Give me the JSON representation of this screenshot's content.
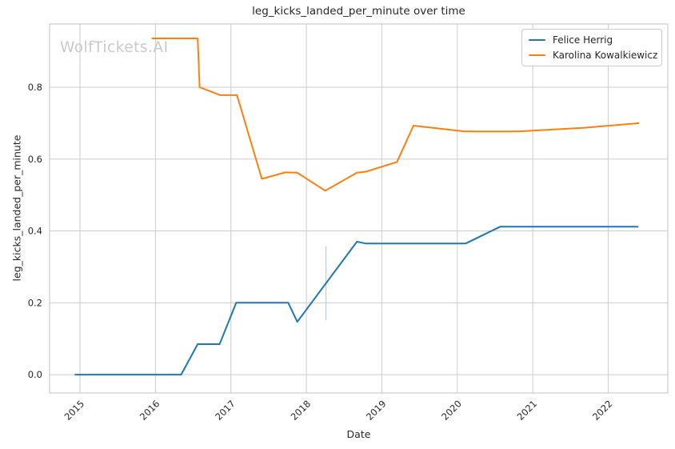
{
  "page": {
    "watermark": "WolfTickets.AI"
  },
  "chart_data": {
    "type": "line",
    "title": "leg_kicks_landed_per_minute over time",
    "xlabel": "Date",
    "ylabel": "leg_kicks_landed_per_minute",
    "grid": true,
    "legend_position": "upper right",
    "xlim": [
      2014.597,
      2022.79
    ],
    "ylim": [
      -0.051,
      0.976
    ],
    "x_ticks": {
      "values": [
        2015,
        2016,
        2017,
        2018,
        2019,
        2020,
        2021,
        2022
      ],
      "labels": [
        "2015",
        "2016",
        "2017",
        "2018",
        "2019",
        "2020",
        "2021",
        "2022"
      ]
    },
    "y_ticks": {
      "values": [
        0.0,
        0.2,
        0.4,
        0.6,
        0.8
      ],
      "labels": [
        "0.0",
        "0.2",
        "0.4",
        "0.6",
        "0.8"
      ]
    },
    "colors": {
      "background": "#ffffff",
      "grid": "#cccccc",
      "spine": "#cccccc",
      "text": "#262626",
      "watermark": "#c9c9c9",
      "event_marker": "#b3d1e6"
    },
    "series": [
      {
        "name": "Felice Herrig",
        "color": "#1f77b4",
        "points": [
          [
            2014.93,
            0.0
          ],
          [
            2016.34,
            0.0
          ],
          [
            2016.56,
            0.085
          ],
          [
            2016.85,
            0.085
          ],
          [
            2017.07,
            0.2
          ],
          [
            2017.76,
            0.2
          ],
          [
            2017.88,
            0.147
          ],
          [
            2018.67,
            0.37
          ],
          [
            2018.79,
            0.365
          ],
          [
            2020.11,
            0.365
          ],
          [
            2020.57,
            0.412
          ],
          [
            2022.4,
            0.412
          ]
        ]
      },
      {
        "name": "Karolina Kowalkiewicz",
        "color": "#ff7f0e",
        "points": [
          [
            2015.95,
            0.936
          ],
          [
            2016.56,
            0.936
          ],
          [
            2016.585,
            0.8
          ],
          [
            2016.86,
            0.778
          ],
          [
            2017.08,
            0.778
          ],
          [
            2017.41,
            0.545
          ],
          [
            2017.72,
            0.563
          ],
          [
            2017.88,
            0.562
          ],
          [
            2018.25,
            0.512
          ],
          [
            2018.67,
            0.562
          ],
          [
            2018.79,
            0.565
          ],
          [
            2019.2,
            0.592
          ],
          [
            2019.42,
            0.693
          ],
          [
            2020.1,
            0.677
          ],
          [
            2020.8,
            0.677
          ],
          [
            2021.67,
            0.687
          ],
          [
            2022.41,
            0.7
          ]
        ]
      }
    ],
    "annotations": [
      {
        "type": "vline",
        "x": 2018.26,
        "y_from": 0.151,
        "y_to": 0.358
      }
    ]
  }
}
